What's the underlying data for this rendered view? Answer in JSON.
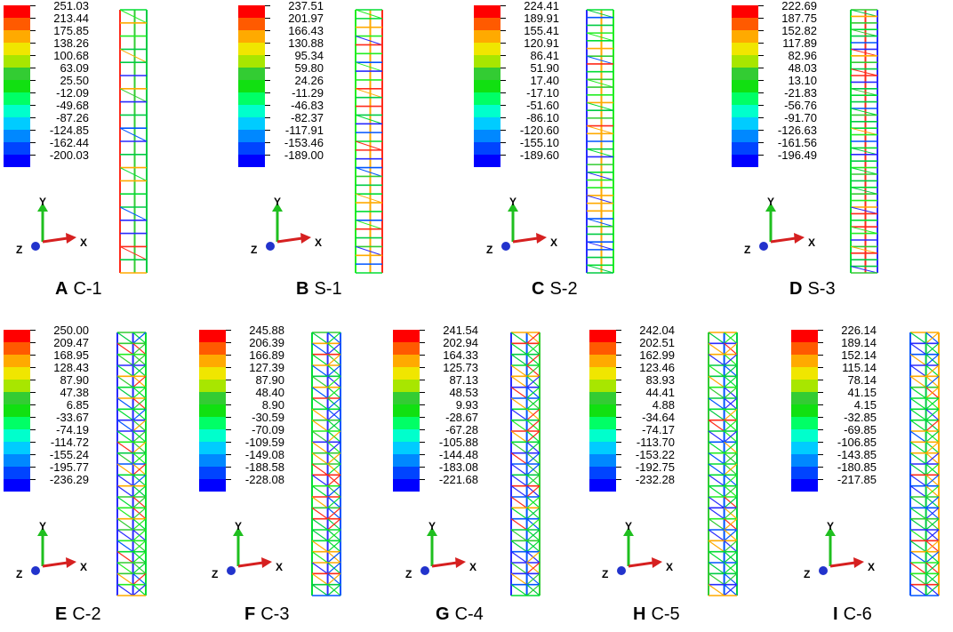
{
  "colorbar": [
    "#ff0000",
    "#ff5a00",
    "#ffaa00",
    "#f0e600",
    "#a8e600",
    "#33cc33",
    "#11e011",
    "#00ff66",
    "#00ffcc",
    "#00ccff",
    "#0088ff",
    "#0044ff",
    "#0000ff"
  ],
  "axis_labels": {
    "y": "Y",
    "x": "X",
    "z": "Z"
  },
  "panels": [
    {
      "letter": "A",
      "name": "C-1",
      "values": [
        "251.03",
        "213.44",
        "175.85",
        "138.26",
        "100.68",
        "63.09",
        "25.50",
        "-12.09",
        "-49.68",
        "-87.26",
        "-124.85",
        "-162.44",
        "-200.03"
      ]
    },
    {
      "letter": "B",
      "name": "S-1",
      "values": [
        "237.51",
        "201.97",
        "166.43",
        "130.88",
        "95.34",
        "59.80",
        "24.26",
        "-11.29",
        "-46.83",
        "-82.37",
        "-117.91",
        "-153.46",
        "-189.00"
      ]
    },
    {
      "letter": "C",
      "name": "S-2",
      "values": [
        "224.41",
        "189.91",
        "155.41",
        "120.91",
        "86.41",
        "51.90",
        "17.40",
        "-17.10",
        "-51.60",
        "-86.10",
        "-120.60",
        "-155.10",
        "-189.60"
      ]
    },
    {
      "letter": "D",
      "name": "S-3",
      "values": [
        "222.69",
        "187.75",
        "152.82",
        "117.89",
        "82.96",
        "48.03",
        "13.10",
        "-21.83",
        "-56.76",
        "-91.70",
        "-126.63",
        "-161.56",
        "-196.49"
      ]
    },
    {
      "letter": "E",
      "name": "C-2",
      "values": [
        "250.00",
        "209.47",
        "168.95",
        "128.43",
        "87.90",
        "47.38",
        "6.85",
        "-33.67",
        "-74.19",
        "-114.72",
        "-155.24",
        "-195.77",
        "-236.29"
      ]
    },
    {
      "letter": "F",
      "name": "C-3",
      "values": [
        "245.88",
        "206.39",
        "166.89",
        "127.39",
        "87.90",
        "48.40",
        "8.90",
        "-30.59",
        "-70.09",
        "-109.59",
        "-149.08",
        "-188.58",
        "-228.08"
      ]
    },
    {
      "letter": "G",
      "name": "C-4",
      "values": [
        "241.54",
        "202.94",
        "164.33",
        "125.73",
        "87.13",
        "48.53",
        "9.93",
        "-28.67",
        "-67.28",
        "-105.88",
        "-144.48",
        "-183.08",
        "-221.68"
      ]
    },
    {
      "letter": "H",
      "name": "C-5",
      "values": [
        "242.04",
        "202.51",
        "162.99",
        "123.46",
        "83.93",
        "44.41",
        "4.88",
        "-34.64",
        "-74.17",
        "-113.70",
        "-153.22",
        "-192.75",
        "-232.28"
      ]
    },
    {
      "letter": "I",
      "name": "C-6",
      "values": [
        "226.14",
        "189.14",
        "152.14",
        "115.14",
        "78.14",
        "41.15",
        "4.15",
        "-32.85",
        "-69.85",
        "-106.85",
        "-143.85",
        "-180.85",
        "-217.85"
      ]
    }
  ]
}
